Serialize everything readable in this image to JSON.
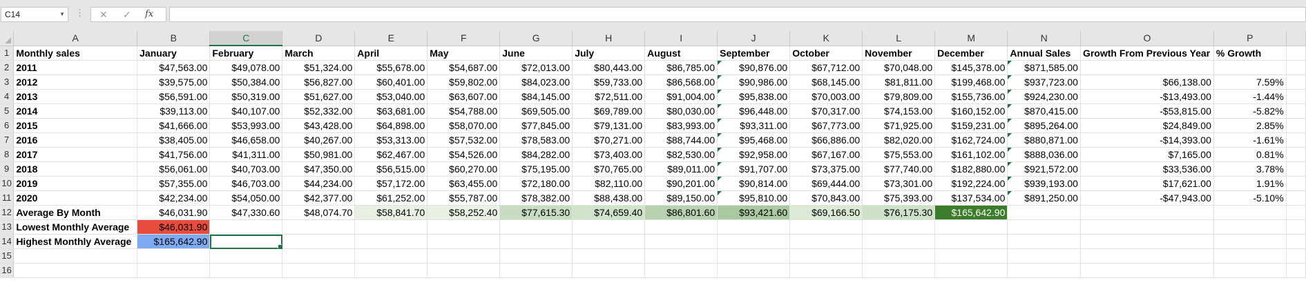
{
  "formula_bar": {
    "name_box": "C14",
    "cancel_icon": "✕",
    "enter_icon": "✓",
    "fx_label": "fx",
    "formula": ""
  },
  "columns": [
    "A",
    "B",
    "C",
    "D",
    "E",
    "F",
    "G",
    "H",
    "I",
    "J",
    "K",
    "L",
    "M",
    "N",
    "O",
    "P",
    ""
  ],
  "row_numbers": [
    "1",
    "2",
    "3",
    "4",
    "5",
    "6",
    "7",
    "8",
    "9",
    "10",
    "11",
    "12",
    "13",
    "14",
    "15",
    "16"
  ],
  "selected_column": "C",
  "colors": {
    "accent": "#217346",
    "lowest_fill": "#e84c3d",
    "highest_fill": "#7eaaf1",
    "scale": {
      "B": "#ffffff",
      "C": "#ffffff",
      "D": "#ffffff",
      "E": "#e8f0e4",
      "F": "#e9f1e5",
      "G": "#c8dcc2",
      "H": "#d0e2ca",
      "I": "#b8d2b0",
      "J": "#a9c9a0",
      "K": "#dce9d7",
      "L": "#cfe0c9",
      "M": "#3c7d2c"
    }
  },
  "rows": [
    [
      "Monthly sales",
      "January",
      "February",
      "March",
      "April",
      "May",
      "June",
      "July",
      "August",
      "September",
      "October",
      "November",
      "December",
      "Annual Sales",
      "Growth From Previous Year",
      "% Growth",
      ""
    ],
    [
      "2011",
      "$47,563.00",
      "$49,078.00",
      "$51,324.00",
      "$55,678.00",
      "$54,687.00",
      "$72,013.00",
      "$80,443.00",
      "$86,785.00",
      "$90,876.00",
      "$67,712.00",
      "$70,048.00",
      "$145,378.00",
      "$871,585.00",
      "",
      "",
      ""
    ],
    [
      "2012",
      "$39,575.00",
      "$50,384.00",
      "$56,827.00",
      "$60,401.00",
      "$59,802.00",
      "$84,023.00",
      "$59,733.00",
      "$86,568.00",
      "$90,986.00",
      "$68,145.00",
      "$81,811.00",
      "$199,468.00",
      "$937,723.00",
      "$66,138.00",
      "7.59%",
      ""
    ],
    [
      "2013",
      "$56,591.00",
      "$50,319.00",
      "$51,627.00",
      "$53,040.00",
      "$63,607.00",
      "$84,145.00",
      "$72,511.00",
      "$91,004.00",
      "$95,838.00",
      "$70,003.00",
      "$79,809.00",
      "$155,736.00",
      "$924,230.00",
      "-$13,493.00",
      "-1.44%",
      ""
    ],
    [
      "2014",
      "$39,113.00",
      "$40,107.00",
      "$52,332.00",
      "$63,681.00",
      "$54,788.00",
      "$69,505.00",
      "$69,789.00",
      "$80,030.00",
      "$96,448.00",
      "$70,317.00",
      "$74,153.00",
      "$160,152.00",
      "$870,415.00",
      "-$53,815.00",
      "-5.82%",
      ""
    ],
    [
      "2015",
      "$41,666.00",
      "$53,993.00",
      "$43,428.00",
      "$64,898.00",
      "$58,070.00",
      "$77,845.00",
      "$79,131.00",
      "$83,993.00",
      "$93,311.00",
      "$67,773.00",
      "$71,925.00",
      "$159,231.00",
      "$895,264.00",
      "$24,849.00",
      "2.85%",
      ""
    ],
    [
      "2016",
      "$38,405.00",
      "$46,658.00",
      "$40,267.00",
      "$53,313.00",
      "$57,532.00",
      "$78,583.00",
      "$70,271.00",
      "$88,744.00",
      "$95,468.00",
      "$66,886.00",
      "$82,020.00",
      "$162,724.00",
      "$880,871.00",
      "-$14,393.00",
      "-1.61%",
      ""
    ],
    [
      "2017",
      "$41,756.00",
      "$41,311.00",
      "$50,981.00",
      "$62,467.00",
      "$54,526.00",
      "$84,282.00",
      "$73,403.00",
      "$82,530.00",
      "$92,958.00",
      "$67,167.00",
      "$75,553.00",
      "$161,102.00",
      "$888,036.00",
      "$7,165.00",
      "0.81%",
      ""
    ],
    [
      "2018",
      "$56,061.00",
      "$40,703.00",
      "$47,350.00",
      "$56,515.00",
      "$60,270.00",
      "$75,195.00",
      "$70,765.00",
      "$89,011.00",
      "$91,707.00",
      "$73,375.00",
      "$77,740.00",
      "$182,880.00",
      "$921,572.00",
      "$33,536.00",
      "3.78%",
      ""
    ],
    [
      "2019",
      "$57,355.00",
      "$46,703.00",
      "$44,234.00",
      "$57,172.00",
      "$63,455.00",
      "$72,180.00",
      "$82,110.00",
      "$90,201.00",
      "$90,814.00",
      "$69,444.00",
      "$73,301.00",
      "$192,224.00",
      "$939,193.00",
      "$17,621.00",
      "1.91%",
      ""
    ],
    [
      "2020",
      "$42,234.00",
      "$54,050.00",
      "$42,377.00",
      "$61,252.00",
      "$55,787.00",
      "$78,382.00",
      "$88,438.00",
      "$89,150.00",
      "$95,810.00",
      "$70,843.00",
      "$75,393.00",
      "$137,534.00",
      "$891,250.00",
      "-$47,943.00",
      "-5.10%",
      ""
    ],
    [
      "Average By Month",
      "$46,031.90",
      "$47,330.60",
      "$48,074.70",
      "$58,841.70",
      "$58,252.40",
      "$77,615.30",
      "$74,659.40",
      "$86,801.60",
      "$93,421.60",
      "$69,166.50",
      "$76,175.30",
      "$165,642.90",
      "",
      "",
      "",
      ""
    ],
    [
      "Lowest Monthly Average",
      "$46,031.90",
      "",
      "",
      "",
      "",
      "",
      "",
      "",
      "",
      "",
      "",
      "",
      "",
      "",
      "",
      ""
    ],
    [
      "Highest Monthly Average",
      "$165,642.90",
      "",
      "",
      "",
      "",
      "",
      "",
      "",
      "",
      "",
      "",
      "",
      "",
      "",
      "",
      ""
    ],
    [
      "",
      "",
      "",
      "",
      "",
      "",
      "",
      "",
      "",
      "",
      "",
      "",
      "",
      "",
      "",
      "",
      ""
    ],
    [
      "",
      "",
      "",
      "",
      "",
      "",
      "",
      "",
      "",
      "",
      "",
      "",
      "",
      "",
      "",
      "",
      ""
    ]
  ]
}
